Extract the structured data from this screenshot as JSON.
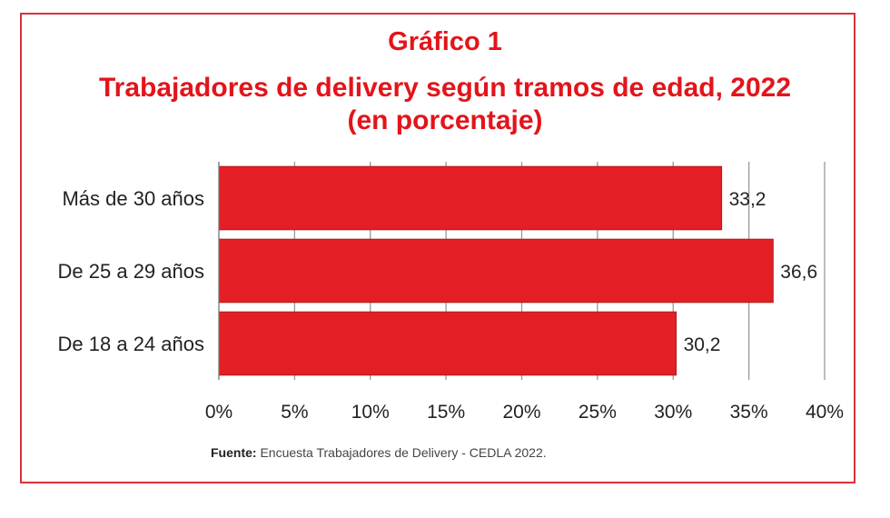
{
  "chart_data": {
    "type": "bar",
    "orientation": "horizontal",
    "heading": "Gráfico 1",
    "title": "Trabajadores de delivery según tramos de edad, 2022",
    "subtitle": "(en porcentaje)",
    "categories": [
      "Más de 30 años",
      "De 25 a 29 años",
      "De 18 a 24 años"
    ],
    "values": [
      33.2,
      36.6,
      30.2
    ],
    "value_labels": [
      "33,2",
      "36,6",
      "30,2"
    ],
    "xlim": [
      0,
      40
    ],
    "xticks": [
      "0%",
      "5%",
      "10%",
      "15%",
      "20%",
      "25%",
      "30%",
      "35%",
      "40%"
    ],
    "grid": "vertical",
    "bar_color": "#e31e24",
    "xlabel": "",
    "ylabel": ""
  },
  "footer": {
    "source_label": "Fuente:",
    "source_text": "Encuesta Trabajadores de Delivery - CEDLA 2022."
  },
  "colors": {
    "accent": "#e3141b",
    "frame": "#d9323a"
  }
}
